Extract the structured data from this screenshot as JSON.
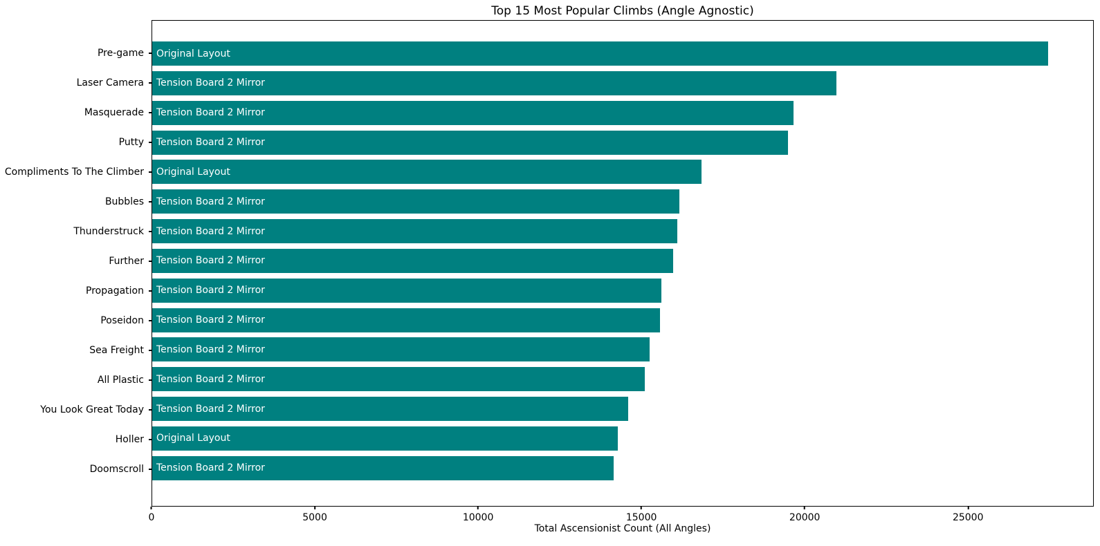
{
  "chart_data": {
    "type": "bar",
    "orientation": "horizontal",
    "title": "Top 15 Most Popular Climbs (Angle Agnostic)",
    "xlabel": "Total Ascensionist Count (All Angles)",
    "ylabel": "",
    "xlim": [
      0,
      28850
    ],
    "x_ticks": [
      0,
      5000,
      10000,
      15000,
      20000,
      25000
    ],
    "grid": false,
    "legend": "none",
    "bar_color": "#008080",
    "bar_label_color": "#ffffff",
    "categories": [
      "Pre-game",
      "Laser Camera",
      "Masquerade",
      "Putty",
      "Compliments To The Climber",
      "Bubbles",
      "Thunderstruck",
      "Further",
      "Propagation",
      "Poseidon",
      "Sea Freight",
      "All Plastic",
      "You Look Great Today",
      "Holler",
      "Doomscroll"
    ],
    "values": [
      27470,
      20970,
      19660,
      19490,
      16840,
      16160,
      16110,
      15970,
      15620,
      15560,
      15250,
      15100,
      14590,
      14280,
      14150
    ],
    "bar_labels": [
      "Original Layout",
      "Tension Board 2 Mirror",
      "Tension Board 2 Mirror",
      "Tension Board 2 Mirror",
      "Original Layout",
      "Tension Board 2 Mirror",
      "Tension Board 2 Mirror",
      "Tension Board 2 Mirror",
      "Tension Board 2 Mirror",
      "Tension Board 2 Mirror",
      "Tension Board 2 Mirror",
      "Tension Board 2 Mirror",
      "Tension Board 2 Mirror",
      "Original Layout",
      "Tension Board 2 Mirror"
    ]
  }
}
